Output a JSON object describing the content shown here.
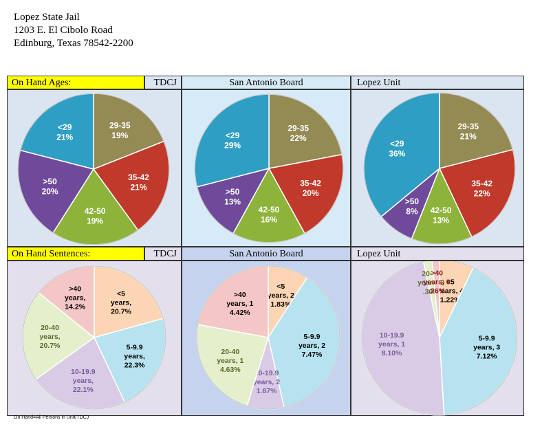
{
  "address": {
    "line1": "Lopez State Jail",
    "line2": "1203 E. El Cibolo Road",
    "line3": "Edinburg, Texas 78542-2200"
  },
  "headers": {
    "ages_label": "On Hand Ages:",
    "sentences_label": "On Hand Sentences:",
    "tdcj": "TDCJ",
    "san_antonio": "San Antonio Board",
    "lopez": "Lopez Unit"
  },
  "footnote": "On Hand=All Persons in Unit/TDCJ",
  "colors": {
    "header_yellow": "#ffff00",
    "cell_blue": "#dbe5f1",
    "cell_lightblue": "#d6ebf7",
    "cell_lavender": "#e4dfec",
    "cell_periwinkle": "#c6d3ee",
    "border": "#333333"
  },
  "chart_data": [
    {
      "type": "pie",
      "title": "TDCJ",
      "section": "On Hand Ages",
      "slices": [
        {
          "label": "29-35",
          "value": 19,
          "text": "19%",
          "color": "#948a54"
        },
        {
          "label": "35-42",
          "value": 21,
          "text": "21%",
          "color": "#c0392b"
        },
        {
          "label": "42-50",
          "value": 19,
          "text": "19%",
          "color": "#8db33a"
        },
        {
          "label": ">50",
          "value": 20,
          "text": "20%",
          "color": "#6f4a9a"
        },
        {
          "label": "<29",
          "value": 21,
          "text": "21%",
          "color": "#2f9ec4"
        }
      ]
    },
    {
      "type": "pie",
      "title": "San Antonio Board",
      "section": "On Hand Ages",
      "slices": [
        {
          "label": "29-35",
          "value": 22,
          "text": "22%",
          "color": "#948a54"
        },
        {
          "label": "35-42",
          "value": 20,
          "text": "20%",
          "color": "#c0392b"
        },
        {
          "label": "42-50",
          "value": 16,
          "text": "16%",
          "color": "#8db33a"
        },
        {
          "label": ">50",
          "value": 13,
          "text": "13%",
          "color": "#6f4a9a"
        },
        {
          "label": "<29",
          "value": 29,
          "text": "29%",
          "color": "#2f9ec4"
        }
      ]
    },
    {
      "type": "pie",
      "title": "Lopez Unit",
      "section": "On Hand Ages",
      "slices": [
        {
          "label": "29-35",
          "value": 21,
          "text": "21%",
          "color": "#948a54"
        },
        {
          "label": "35-42",
          "value": 22,
          "text": "22%",
          "color": "#c0392b"
        },
        {
          "label": "42-50",
          "value": 13,
          "text": "13%",
          "color": "#8db33a"
        },
        {
          "label": ">50",
          "value": 8,
          "text": "8%",
          "color": "#6f4a9a"
        },
        {
          "label": "<29",
          "value": 36,
          "text": "36%",
          "color": "#2f9ec4"
        }
      ]
    },
    {
      "type": "pie",
      "title": "TDCJ",
      "section": "On Hand Sentences",
      "slices": [
        {
          "label": "<5 years,",
          "value": 20.7,
          "text": "20.7%",
          "color": "#fcd5b4"
        },
        {
          "label": "5-9.9 years,",
          "value": 22.3,
          "text": "22.3%",
          "color": "#b7e2f0"
        },
        {
          "label": "10-19.9 years,",
          "value": 22.1,
          "text": "22.1%",
          "color": "#d9cbe6"
        },
        {
          "label": "20-40 years,",
          "value": 20.7,
          "text": "20.7%",
          "color": "#e4efcc"
        },
        {
          "label": ">40 years,",
          "value": 14.2,
          "text": "14.2%",
          "color": "#f4c6c6"
        }
      ]
    },
    {
      "type": "pie",
      "title": "San Antonio Board",
      "section": "On Hand Sentences",
      "slices": [
        {
          "label": "<5 years, 2",
          "value": 1.83,
          "text": "1.83%",
          "color": "#fcd5b4"
        },
        {
          "label": "5-9.9 years, 2",
          "value": 7.47,
          "text": "7.47%",
          "color": "#b7e2f0"
        },
        {
          "label": "10-19.9 years, 2",
          "value": 1.67,
          "text": "1.67%",
          "color": "#d9cbe6"
        },
        {
          "label": "20-40 years, 1",
          "value": 4.63,
          "text": "4.63%",
          "color": "#e4efcc"
        },
        {
          "label": ">40 years, 1",
          "value": 4.42,
          "text": "4.42%",
          "color": "#f4c6c6"
        }
      ]
    },
    {
      "type": "pie",
      "title": "Lopez Unit",
      "section": "On Hand Sentences",
      "slices": [
        {
          "label": "<5 years, 4",
          "value": 1.22,
          "text": "1.22%",
          "color": "#fcd5b4"
        },
        {
          "label": "5-9.9 years, 3",
          "value": 7.12,
          "text": "7.12%",
          "color": "#b7e2f0"
        },
        {
          "label": "10-19.9 years, 1",
          "value": 8.1,
          "text": "8.10%",
          "color": "#d9cbe6"
        },
        {
          "label": "20-40 years, 3",
          "value": 0.3,
          "text": ".30%",
          "color": "#e4efcc"
        },
        {
          "label": ">40 years, 0",
          "value": 0.26,
          "text": ".26%",
          "color": "#f4c6c6"
        }
      ]
    }
  ]
}
